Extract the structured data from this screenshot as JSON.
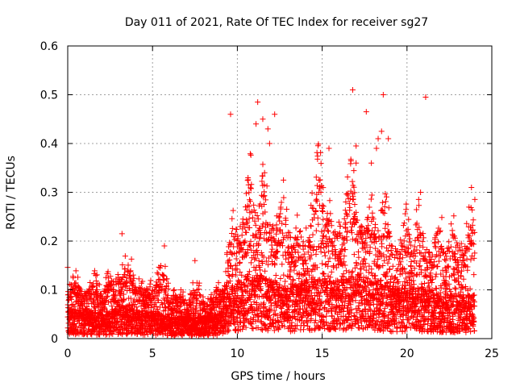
{
  "chart_data": {
    "type": "scatter",
    "title": "Day 011 of 2021, Rate Of TEC Index for receiver sg27",
    "xlabel": "GPS time / hours",
    "ylabel": "ROTI / TECUs",
    "xlim": [
      0,
      25
    ],
    "ylim": [
      0,
      0.6
    ],
    "xticks": [
      0,
      5,
      10,
      15,
      20,
      25
    ],
    "yticks": [
      0,
      0.1,
      0.2,
      0.3,
      0.4,
      0.5,
      0.6
    ],
    "xtick_labels": [
      "0",
      "5",
      "10",
      "15",
      "20",
      "25"
    ],
    "ytick_labels": [
      "0",
      "0.1",
      "0.2",
      "0.3",
      "0.4",
      "0.5",
      "0.6"
    ],
    "grid": true,
    "marker": "+",
    "color": "#ff0000",
    "series": [
      {
        "name": "ROTI",
        "x_range": [
          0,
          24
        ],
        "profile": [
          {
            "x": 0.0,
            "base": 0.04,
            "upper": 0.12
          },
          {
            "x": 1.0,
            "base": 0.04,
            "upper": 0.11
          },
          {
            "x": 2.0,
            "base": 0.035,
            "upper": 0.1
          },
          {
            "x": 3.0,
            "base": 0.045,
            "upper": 0.15
          },
          {
            "x": 4.0,
            "base": 0.04,
            "upper": 0.12
          },
          {
            "x": 5.0,
            "base": 0.035,
            "upper": 0.12
          },
          {
            "x": 6.0,
            "base": 0.03,
            "upper": 0.11
          },
          {
            "x": 7.0,
            "base": 0.03,
            "upper": 0.09
          },
          {
            "x": 8.0,
            "base": 0.03,
            "upper": 0.09
          },
          {
            "x": 9.0,
            "base": 0.035,
            "upper": 0.1
          },
          {
            "x": 10.0,
            "base": 0.08,
            "upper": 0.26
          },
          {
            "x": 11.0,
            "base": 0.09,
            "upper": 0.3
          },
          {
            "x": 12.0,
            "base": 0.08,
            "upper": 0.28
          },
          {
            "x": 13.0,
            "base": 0.07,
            "upper": 0.22
          },
          {
            "x": 14.0,
            "base": 0.08,
            "upper": 0.24
          },
          {
            "x": 15.0,
            "base": 0.09,
            "upper": 0.3
          },
          {
            "x": 16.0,
            "base": 0.08,
            "upper": 0.26
          },
          {
            "x": 17.0,
            "base": 0.09,
            "upper": 0.28
          },
          {
            "x": 18.0,
            "base": 0.08,
            "upper": 0.26
          },
          {
            "x": 19.0,
            "base": 0.07,
            "upper": 0.22
          },
          {
            "x": 20.0,
            "base": 0.07,
            "upper": 0.23
          },
          {
            "x": 21.0,
            "base": 0.07,
            "upper": 0.22
          },
          {
            "x": 22.0,
            "base": 0.06,
            "upper": 0.2
          },
          {
            "x": 23.0,
            "base": 0.06,
            "upper": 0.22
          },
          {
            "x": 24.0,
            "base": 0.06,
            "upper": 0.22
          }
        ],
        "outliers": [
          {
            "x": 9.6,
            "y": 0.46
          },
          {
            "x": 11.2,
            "y": 0.485
          },
          {
            "x": 11.5,
            "y": 0.45
          },
          {
            "x": 12.2,
            "y": 0.46
          },
          {
            "x": 11.1,
            "y": 0.44
          },
          {
            "x": 11.8,
            "y": 0.43
          },
          {
            "x": 16.8,
            "y": 0.51
          },
          {
            "x": 17.6,
            "y": 0.465
          },
          {
            "x": 18.6,
            "y": 0.5
          },
          {
            "x": 21.1,
            "y": 0.495
          },
          {
            "x": 18.3,
            "y": 0.41
          },
          {
            "x": 18.5,
            "y": 0.425
          },
          {
            "x": 18.2,
            "y": 0.39
          },
          {
            "x": 17.0,
            "y": 0.395
          },
          {
            "x": 18.9,
            "y": 0.41
          },
          {
            "x": 17.9,
            "y": 0.36
          },
          {
            "x": 17.0,
            "y": 0.36
          },
          {
            "x": 11.9,
            "y": 0.4
          },
          {
            "x": 15.4,
            "y": 0.39
          },
          {
            "x": 3.2,
            "y": 0.215
          },
          {
            "x": 5.7,
            "y": 0.19
          },
          {
            "x": 7.5,
            "y": 0.16
          },
          {
            "x": 20.8,
            "y": 0.3
          },
          {
            "x": 23.8,
            "y": 0.31
          }
        ]
      }
    ]
  }
}
